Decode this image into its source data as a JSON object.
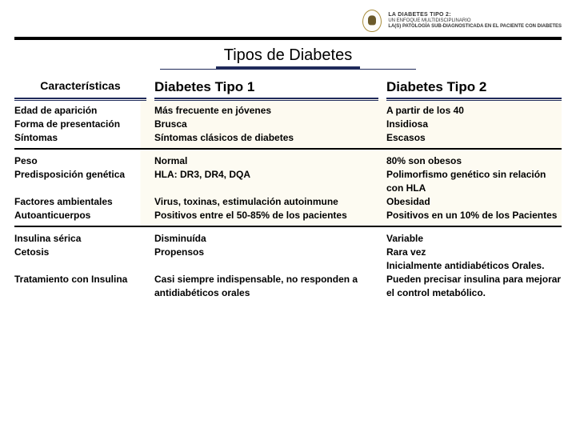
{
  "header": {
    "line1": "LA DIABETES TIPO 2:",
    "line2": "UN ENFOQUE MULTIDISCIPLINARIO",
    "line3": "LA(S) PATOLOGÍA SUB-DIAGNOSTICADA EN EL PACIENTE CON DIABETES"
  },
  "title": "Tipos de Diabetes",
  "columns": {
    "c0": "Características",
    "c1": "Diabetes Tipo 1",
    "c2": "Diabetes Tipo 2"
  },
  "rows": [
    {
      "c0": "Edad de aparición\nForma de presentación\nSíntomas",
      "c1": "Más frecuente en jóvenes\nBrusca\nSíntomas clásicos de diabetes",
      "c2": "A partir de los 40\nInsidiosa\nEscasos"
    },
    {
      "c0": "Peso\nPredisposición genética\n\nFactores ambientales\nAutoanticuerpos",
      "c1": "Normal\nHLA: DR3, DR4, DQA\n\nVirus, toxinas, estimulación autoinmune\nPositivos entre el 50-85% de los pacientes",
      "c2": "80% son obesos\nPolimorfismo genético sin relación con HLA\nObesidad\nPositivos en un 10% de los Pacientes"
    },
    {
      "c0": "Insulina sérica\nCetosis\n\nTratamiento con Insulina",
      "c1": "Disminuída\nPropensos\n\nCasi siempre indispensable, no responden a antidiabéticos orales",
      "c2": "Variable\nRara vez\nInicialmente antidiabéticos Orales. Pueden precisar insulina para mejorar el control metabólico."
    }
  ],
  "colors": {
    "accent": "#1f2a5a",
    "tint": "#fdfaf0"
  }
}
